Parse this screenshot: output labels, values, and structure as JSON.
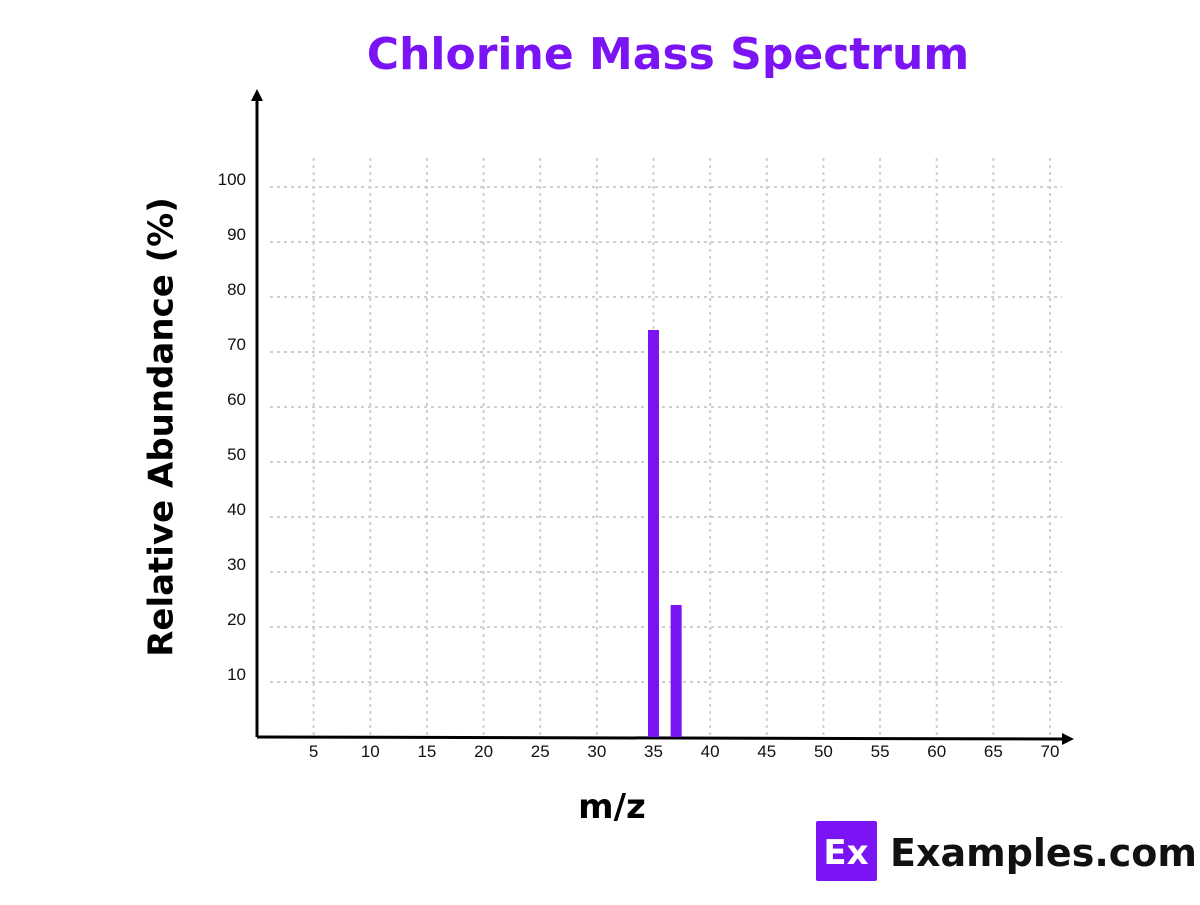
{
  "chart_data": {
    "type": "bar",
    "title": "Chlorine Mass Spectrum",
    "xlabel": "m/z",
    "ylabel": "Relative Abundance (%)",
    "x_ticks": [
      "5",
      "10",
      "15",
      "20",
      "25",
      "30",
      "35",
      "40",
      "45",
      "50",
      "55",
      "60",
      "65",
      "70"
    ],
    "y_ticks": [
      "10",
      "20",
      "30",
      "40",
      "50",
      "60",
      "70",
      "80",
      "90",
      "100"
    ],
    "xlim": [
      0,
      70
    ],
    "ylim": [
      0,
      100
    ],
    "grid": true,
    "bars": [
      {
        "x": 35,
        "y": 74
      },
      {
        "x": 37,
        "y": 24
      }
    ]
  },
  "colors": {
    "accent": "#7a14f5",
    "bar": "#7a14f5",
    "grid": "#cfcfcf",
    "axis": "#000000"
  },
  "brand": {
    "badge": "Ex",
    "name": "Examples.com"
  }
}
